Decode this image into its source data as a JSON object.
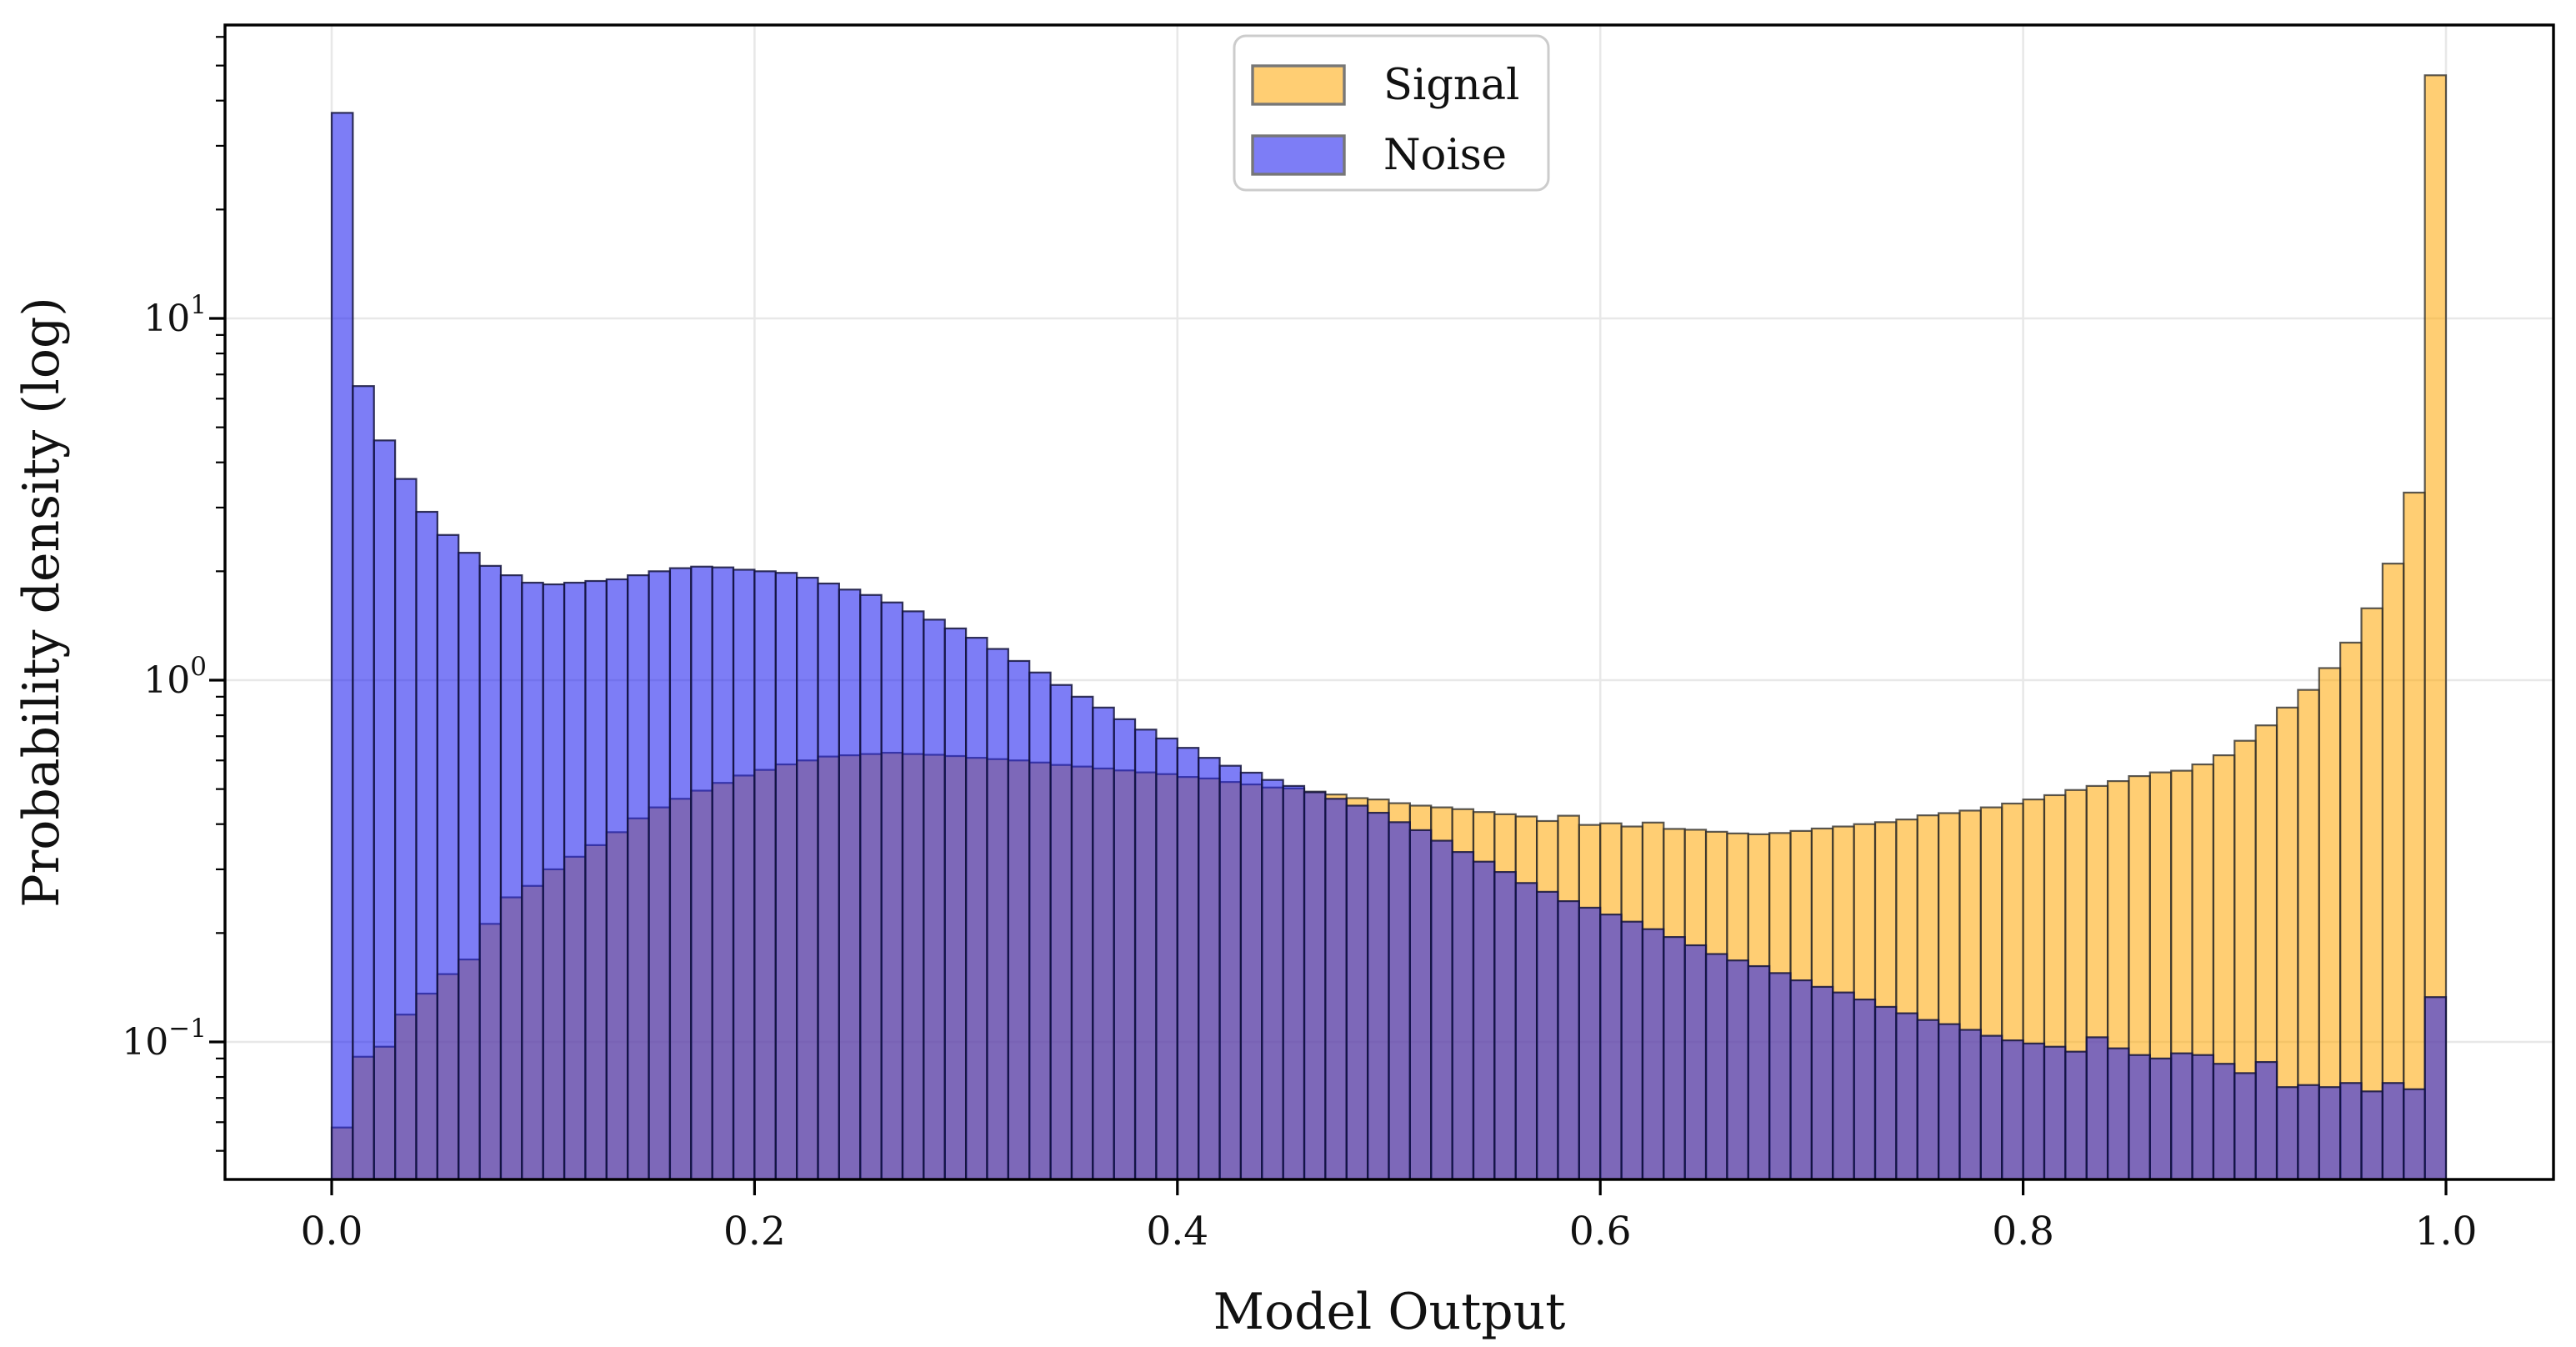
{
  "figure": {
    "background": "#ffffff",
    "x_axis": {
      "label": "Model Output",
      "tick_labels": [
        "0.0",
        "0.2",
        "0.4",
        "0.6",
        "0.8",
        "1.0"
      ],
      "tick_values": [
        0.0,
        0.2,
        0.4,
        0.6,
        0.8,
        1.0
      ],
      "range": [
        -0.0505,
        1.0505
      ]
    },
    "y_axis": {
      "label": "Probability density (log)",
      "scale": "log",
      "major_tick_values": [
        10,
        1,
        0.1
      ],
      "major_tick_labels": [
        {
          "base": "10",
          "exp": "1"
        },
        {
          "base": "10",
          "exp": "0"
        },
        {
          "base": "10",
          "exp": "−1"
        }
      ],
      "range": [
        0.0417,
        64.9
      ]
    },
    "grid": {
      "show": true,
      "color": "#e8e8e8"
    },
    "legend": {
      "items": [
        {
          "label": "Signal",
          "swatch_fill": "#ffa500",
          "swatch_opacity": 0.55,
          "swatch_edge": "#777777"
        },
        {
          "label": "Noise",
          "swatch_fill": "#1a1aef",
          "swatch_opacity": 0.57,
          "swatch_edge": "#777777"
        }
      ],
      "border_color": "#cccccc",
      "background": "#ffffff"
    }
  },
  "chart_data": {
    "type": "bar",
    "subtype": "histogram-overlaid",
    "title": "",
    "xlabel": "Model Output",
    "ylabel": "Probability density (log)",
    "yscale": "log",
    "bins": 100,
    "bin_start": 0.0,
    "bin_width": 0.01,
    "xlim": [
      -0.0505,
      1.0505
    ],
    "ylim": [
      0.0417,
      64.9
    ],
    "legend_position": "upper center-left",
    "series": [
      {
        "name": "Signal",
        "fill": "#ffa500",
        "fill_opacity": 0.55,
        "edge": "#2b2b2b",
        "edge_opacity": 0.78,
        "values": [
          0.058,
          0.091,
          0.097,
          0.119,
          0.136,
          0.154,
          0.169,
          0.212,
          0.251,
          0.27,
          0.3,
          0.325,
          0.35,
          0.38,
          0.415,
          0.445,
          0.47,
          0.495,
          0.52,
          0.545,
          0.565,
          0.585,
          0.6,
          0.615,
          0.62,
          0.625,
          0.63,
          0.625,
          0.622,
          0.617,
          0.61,
          0.605,
          0.6,
          0.592,
          0.583,
          0.577,
          0.57,
          0.563,
          0.556,
          0.55,
          0.54,
          0.535,
          0.523,
          0.515,
          0.505,
          0.502,
          0.492,
          0.483,
          0.472,
          0.468,
          0.457,
          0.45,
          0.445,
          0.44,
          0.432,
          0.426,
          0.42,
          0.408,
          0.422,
          0.398,
          0.402,
          0.394,
          0.404,
          0.388,
          0.386,
          0.381,
          0.377,
          0.375,
          0.378,
          0.383,
          0.389,
          0.394,
          0.4,
          0.405,
          0.412,
          0.423,
          0.429,
          0.436,
          0.445,
          0.456,
          0.468,
          0.481,
          0.497,
          0.51,
          0.526,
          0.543,
          0.556,
          0.562,
          0.585,
          0.62,
          0.68,
          0.75,
          0.84,
          0.94,
          1.08,
          1.27,
          1.58,
          2.1,
          3.3,
          47.0
        ]
      },
      {
        "name": "Noise",
        "fill": "#1a1aef",
        "fill_opacity": 0.57,
        "edge": "#14143c",
        "edge_opacity": 0.85,
        "values": [
          37.0,
          6.5,
          4.6,
          3.6,
          2.92,
          2.52,
          2.25,
          2.07,
          1.95,
          1.86,
          1.84,
          1.86,
          1.88,
          1.9,
          1.95,
          2.0,
          2.04,
          2.06,
          2.05,
          2.02,
          2.0,
          1.98,
          1.92,
          1.85,
          1.78,
          1.72,
          1.64,
          1.55,
          1.47,
          1.39,
          1.31,
          1.22,
          1.13,
          1.05,
          0.97,
          0.9,
          0.84,
          0.78,
          0.73,
          0.69,
          0.65,
          0.61,
          0.58,
          0.555,
          0.53,
          0.51,
          0.49,
          0.47,
          0.45,
          0.43,
          0.405,
          0.385,
          0.36,
          0.335,
          0.315,
          0.295,
          0.275,
          0.26,
          0.245,
          0.235,
          0.225,
          0.215,
          0.205,
          0.195,
          0.185,
          0.175,
          0.168,
          0.162,
          0.155,
          0.148,
          0.142,
          0.137,
          0.131,
          0.125,
          0.12,
          0.115,
          0.112,
          0.108,
          0.104,
          0.101,
          0.099,
          0.097,
          0.094,
          0.103,
          0.096,
          0.092,
          0.09,
          0.093,
          0.092,
          0.087,
          0.082,
          0.088,
          0.075,
          0.076,
          0.075,
          0.077,
          0.073,
          0.077,
          0.074,
          0.133
        ]
      }
    ]
  }
}
